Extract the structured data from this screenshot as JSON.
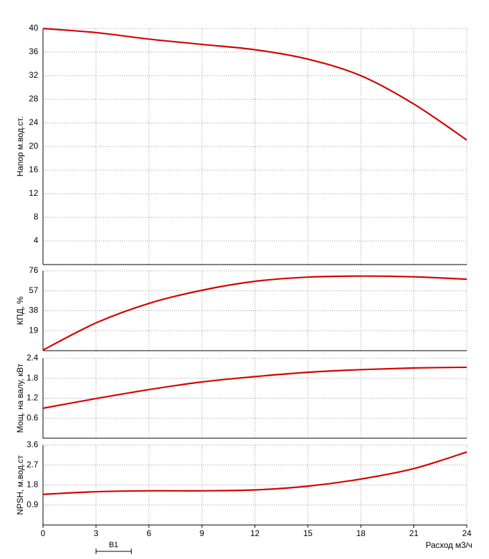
{
  "chart_data": [
    {
      "type": "line",
      "y_label": "Напор м.вод.ст.",
      "xlim": [
        0,
        24
      ],
      "xticks": [
        0,
        3,
        6,
        9,
        12,
        15,
        18,
        21,
        24
      ],
      "ylim": [
        0,
        40
      ],
      "yticks": [
        4,
        8,
        12,
        16,
        20,
        24,
        28,
        32,
        36,
        40
      ],
      "grid": true,
      "x": [
        0,
        3,
        6,
        9,
        12,
        15,
        18,
        21,
        24
      ],
      "series": [
        {
          "color": "#d40000",
          "values": [
            40,
            39.3,
            38.2,
            37.3,
            36.4,
            34.8,
            32,
            27.2,
            21.1
          ]
        }
      ]
    },
    {
      "type": "line",
      "y_label": "КПД, %",
      "xlim": [
        0,
        24
      ],
      "xticks": [
        0,
        3,
        6,
        9,
        12,
        15,
        18,
        21,
        24
      ],
      "ylim": [
        0,
        76
      ],
      "yticks": [
        19,
        38,
        57,
        76
      ],
      "grid": true,
      "x": [
        0,
        3,
        6,
        9,
        12,
        15,
        18,
        21,
        24
      ],
      "series": [
        {
          "color": "#d40000",
          "values": [
            0.6,
            26.4,
            45,
            57.5,
            66,
            70,
            71,
            70.3,
            68
          ]
        }
      ]
    },
    {
      "type": "line",
      "y_label": "Мощ. на валу, кВт",
      "xlim": [
        0,
        24
      ],
      "xticks": [
        0,
        3,
        6,
        9,
        12,
        15,
        18,
        21,
        24
      ],
      "ylim": [
        0,
        2.4
      ],
      "yticks": [
        0.6,
        1.2,
        1.8,
        2.4
      ],
      "grid": true,
      "x": [
        0,
        3,
        6,
        9,
        12,
        15,
        18,
        21,
        24
      ],
      "series": [
        {
          "color": "#d40000",
          "values": [
            0.9,
            1.19,
            1.46,
            1.69,
            1.85,
            1.98,
            2.06,
            2.11,
            2.13
          ]
        }
      ]
    },
    {
      "type": "line",
      "y_label": "NPSH, м.вод.ст",
      "x_label": "Расход м3/ч",
      "xlim": [
        0,
        24
      ],
      "xticks": [
        0,
        3,
        6,
        9,
        12,
        15,
        18,
        21,
        24
      ],
      "ylim": [
        0,
        3.6
      ],
      "yticks": [
        0.9,
        1.8,
        2.7,
        3.6
      ],
      "grid": true,
      "x": [
        0,
        3,
        6,
        9,
        12,
        15,
        18,
        21,
        24
      ],
      "series": [
        {
          "color": "#d40000",
          "values": [
            1.38,
            1.5,
            1.54,
            1.54,
            1.58,
            1.75,
            2.07,
            2.54,
            3.29
          ]
        }
      ],
      "annotation": {
        "text": "B1",
        "x": [
          3,
          5
        ]
      }
    }
  ]
}
